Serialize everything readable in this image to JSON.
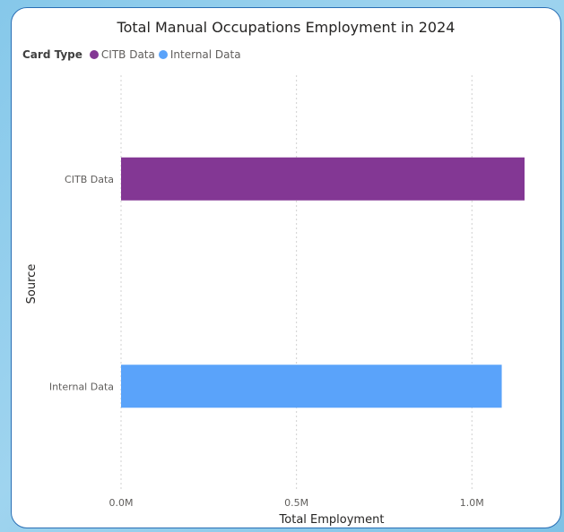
{
  "chart_data": {
    "type": "bar",
    "orientation": "horizontal",
    "title": "Total Manual Occupations Employment in 2024",
    "xlabel": "Total Employment",
    "ylabel": "Source",
    "categories": [
      "CITB Data",
      "Internal Data"
    ],
    "values": [
      1150000,
      1085000
    ],
    "colors": [
      "#833794",
      "#5aa3fa"
    ],
    "xlim": [
      0,
      1150000
    ],
    "x_ticks": [
      0,
      500000,
      1000000
    ],
    "x_tick_labels": [
      "0.0M",
      "0.5M",
      "1.0M"
    ],
    "grid": true,
    "legend": {
      "title": "Card Type",
      "placement": "top-left",
      "items": [
        {
          "label": "CITB Data",
          "color": "#833794"
        },
        {
          "label": "Internal Data",
          "color": "#5aa3fa"
        }
      ]
    }
  }
}
